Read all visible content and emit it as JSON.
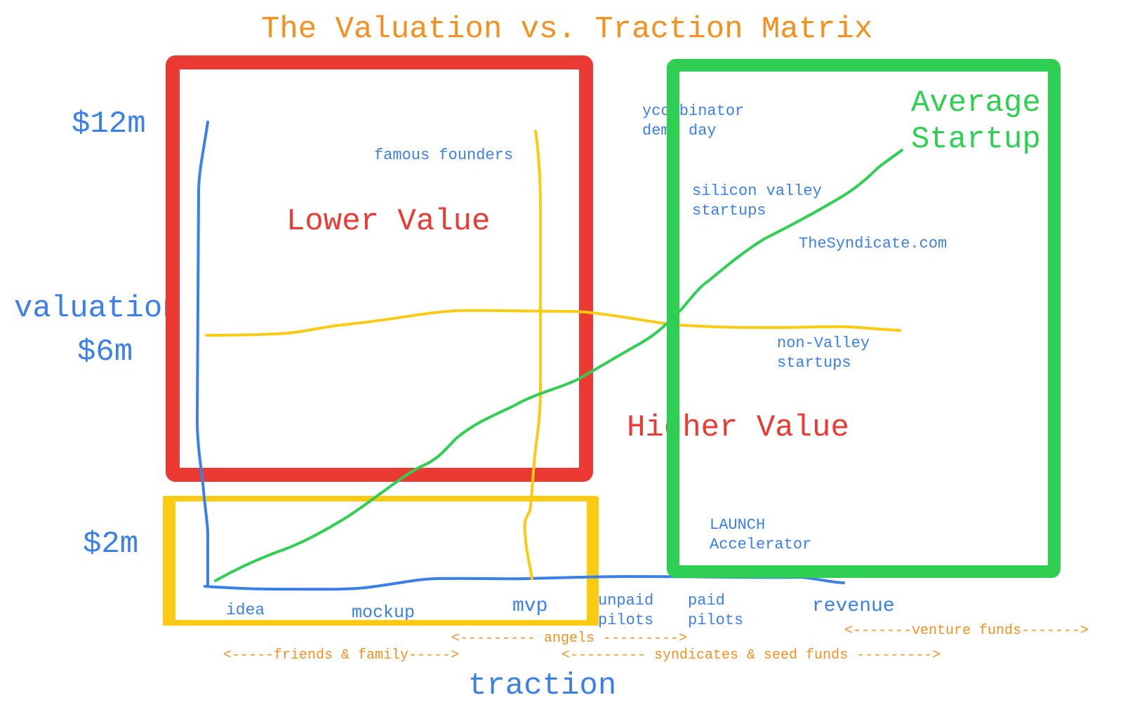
{
  "title": "The Valuation vs. Traction Matrix",
  "y_axis": {
    "label": "valuation",
    "ticks": [
      "$12m",
      "$6m",
      "$2m"
    ]
  },
  "x_axis": {
    "label": "traction",
    "stages": [
      "idea",
      "mockup",
      "mvp",
      "unpaid\npilots",
      "paid\npilots",
      "revenue"
    ]
  },
  "regions": {
    "lower_value": "Lower Value",
    "higher_value": "Higher Value",
    "average_startup": "Average\nStartup"
  },
  "annotations": {
    "famous_founders": "famous founders",
    "ycombinator": "ycombinator\ndemo day",
    "silicon_valley": "silicon valley\nstartups",
    "syndicate": "TheSyndicate.com",
    "non_valley": "non-Valley\nstartups",
    "launch": "LAUNCH\nAccelerator"
  },
  "funding": {
    "friends": "<-----friends & family----->",
    "angels": "<--------- angels --------->",
    "syndicates": "<--------- syndicates & seed funds --------->",
    "venture": "<-------venture funds------->"
  },
  "colors": {
    "title": "#f5901e",
    "axis": "#3b7fe8",
    "lower_value": "#ea3a33",
    "average_startup": "#2ecf52",
    "early_stage": "#fbcb14"
  }
}
